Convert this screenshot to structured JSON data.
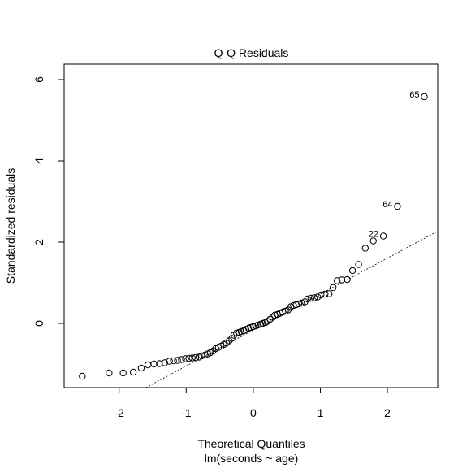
{
  "chart_data": {
    "type": "scatter",
    "title": "Q-Q Residuals",
    "xlabel": "Theoretical Quantiles",
    "xlabel2": "lm(seconds ~ age)",
    "ylabel": "Standardized residuals",
    "xlim": [
      -2.82,
      2.75
    ],
    "ylim": [
      -1.58,
      6.38
    ],
    "xticks": [
      -2,
      -1,
      0,
      1,
      2
    ],
    "yticks": [
      0,
      2,
      4,
      6
    ],
    "grid": false,
    "reference_line": {
      "style": "dotted",
      "points": [
        [
          -1.6,
          -1.58
        ],
        [
          2.75,
          2.27
        ]
      ]
    },
    "labeled_points": [
      {
        "label": "65",
        "x": 2.55,
        "y": 5.58
      },
      {
        "label": "64",
        "x": 2.15,
        "y": 2.88
      },
      {
        "label": "22",
        "x": 1.94,
        "y": 2.15
      }
    ],
    "points": [
      {
        "x": -2.55,
        "y": -1.3
      },
      {
        "x": -2.15,
        "y": -1.22
      },
      {
        "x": -1.94,
        "y": -1.22
      },
      {
        "x": -1.79,
        "y": -1.2
      },
      {
        "x": -1.67,
        "y": -1.1
      },
      {
        "x": -1.57,
        "y": -1.02
      },
      {
        "x": -1.48,
        "y": -1.0
      },
      {
        "x": -1.4,
        "y": -0.99
      },
      {
        "x": -1.32,
        "y": -0.97
      },
      {
        "x": -1.25,
        "y": -0.93
      },
      {
        "x": -1.19,
        "y": -0.92
      },
      {
        "x": -1.13,
        "y": -0.91
      },
      {
        "x": -1.07,
        "y": -0.89
      },
      {
        "x": -1.01,
        "y": -0.87
      },
      {
        "x": -0.96,
        "y": -0.86
      },
      {
        "x": -0.91,
        "y": -0.85
      },
      {
        "x": -0.86,
        "y": -0.84
      },
      {
        "x": -0.81,
        "y": -0.83
      },
      {
        "x": -0.77,
        "y": -0.8
      },
      {
        "x": -0.72,
        "y": -0.78
      },
      {
        "x": -0.68,
        "y": -0.75
      },
      {
        "x": -0.64,
        "y": -0.72
      },
      {
        "x": -0.6,
        "y": -0.68
      },
      {
        "x": -0.56,
        "y": -0.62
      },
      {
        "x": -0.52,
        "y": -0.59
      },
      {
        "x": -0.48,
        "y": -0.56
      },
      {
        "x": -0.44,
        "y": -0.52
      },
      {
        "x": -0.4,
        "y": -0.48
      },
      {
        "x": -0.36,
        "y": -0.43
      },
      {
        "x": -0.32,
        "y": -0.37
      },
      {
        "x": -0.29,
        "y": -0.29
      },
      {
        "x": -0.25,
        "y": -0.24
      },
      {
        "x": -0.21,
        "y": -0.22
      },
      {
        "x": -0.18,
        "y": -0.2
      },
      {
        "x": -0.14,
        "y": -0.18
      },
      {
        "x": -0.11,
        "y": -0.15
      },
      {
        "x": -0.07,
        "y": -0.12
      },
      {
        "x": -0.04,
        "y": -0.1
      },
      {
        "x": 0.0,
        "y": -0.08
      },
      {
        "x": 0.04,
        "y": -0.06
      },
      {
        "x": 0.07,
        "y": -0.04
      },
      {
        "x": 0.11,
        "y": -0.02
      },
      {
        "x": 0.14,
        "y": 0.0
      },
      {
        "x": 0.18,
        "y": 0.02
      },
      {
        "x": 0.21,
        "y": 0.05
      },
      {
        "x": 0.25,
        "y": 0.1
      },
      {
        "x": 0.29,
        "y": 0.15
      },
      {
        "x": 0.32,
        "y": 0.2
      },
      {
        "x": 0.36,
        "y": 0.22
      },
      {
        "x": 0.4,
        "y": 0.25
      },
      {
        "x": 0.44,
        "y": 0.28
      },
      {
        "x": 0.48,
        "y": 0.3
      },
      {
        "x": 0.52,
        "y": 0.33
      },
      {
        "x": 0.56,
        "y": 0.41
      },
      {
        "x": 0.6,
        "y": 0.44
      },
      {
        "x": 0.64,
        "y": 0.46
      },
      {
        "x": 0.68,
        "y": 0.48
      },
      {
        "x": 0.72,
        "y": 0.5
      },
      {
        "x": 0.77,
        "y": 0.53
      },
      {
        "x": 0.81,
        "y": 0.6
      },
      {
        "x": 0.86,
        "y": 0.62
      },
      {
        "x": 0.91,
        "y": 0.63
      },
      {
        "x": 0.96,
        "y": 0.65
      },
      {
        "x": 1.01,
        "y": 0.7
      },
      {
        "x": 1.07,
        "y": 0.72
      },
      {
        "x": 1.13,
        "y": 0.73
      },
      {
        "x": 1.19,
        "y": 0.88
      },
      {
        "x": 1.25,
        "y": 1.05
      },
      {
        "x": 1.32,
        "y": 1.07
      },
      {
        "x": 1.4,
        "y": 1.08
      },
      {
        "x": 1.48,
        "y": 1.3
      },
      {
        "x": 1.57,
        "y": 1.45
      },
      {
        "x": 1.67,
        "y": 1.85
      },
      {
        "x": 1.79,
        "y": 2.03
      }
    ]
  }
}
